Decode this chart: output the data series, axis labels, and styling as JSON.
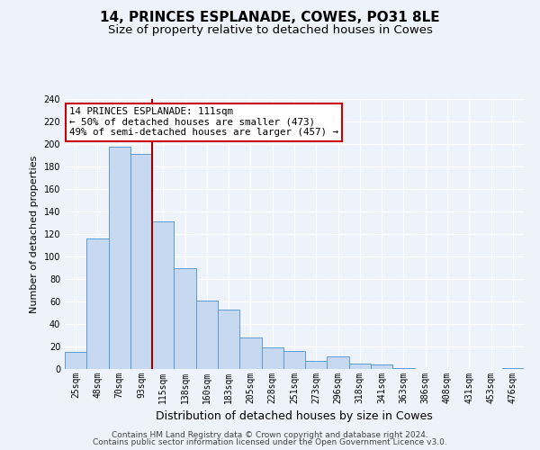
{
  "title": "14, PRINCES ESPLANADE, COWES, PO31 8LE",
  "subtitle": "Size of property relative to detached houses in Cowes",
  "xlabel": "Distribution of detached houses by size in Cowes",
  "ylabel": "Number of detached properties",
  "bin_labels": [
    "25sqm",
    "48sqm",
    "70sqm",
    "93sqm",
    "115sqm",
    "138sqm",
    "160sqm",
    "183sqm",
    "205sqm",
    "228sqm",
    "251sqm",
    "273sqm",
    "296sqm",
    "318sqm",
    "341sqm",
    "363sqm",
    "386sqm",
    "408sqm",
    "431sqm",
    "453sqm",
    "476sqm"
  ],
  "bar_values": [
    15,
    116,
    198,
    191,
    131,
    90,
    61,
    53,
    28,
    19,
    16,
    7,
    11,
    5,
    4,
    1,
    0,
    0,
    0,
    0,
    1
  ],
  "bar_color": "#c6d9f1",
  "bar_edge_color": "#5b9bd5",
  "vline_color": "#990000",
  "ylim": [
    0,
    240
  ],
  "yticks": [
    0,
    20,
    40,
    60,
    80,
    100,
    120,
    140,
    160,
    180,
    200,
    220,
    240
  ],
  "annotation_title": "14 PRINCES ESPLANADE: 111sqm",
  "annotation_line1": "← 50% of detached houses are smaller (473)",
  "annotation_line2": "49% of semi-detached houses are larger (457) →",
  "annotation_box_color": "#ffffff",
  "annotation_box_edge": "#cc0000",
  "footnote1": "Contains HM Land Registry data © Crown copyright and database right 2024.",
  "footnote2": "Contains public sector information licensed under the Open Government Licence v3.0.",
  "bg_color": "#eef2fa",
  "plot_bg_color": "#eef2fa",
  "grid_color": "#ffffff",
  "title_fontsize": 11,
  "subtitle_fontsize": 9.5,
  "xlabel_fontsize": 9,
  "ylabel_fontsize": 8,
  "tick_fontsize": 7,
  "footnote_fontsize": 6.5,
  "annotation_fontsize": 7.8
}
